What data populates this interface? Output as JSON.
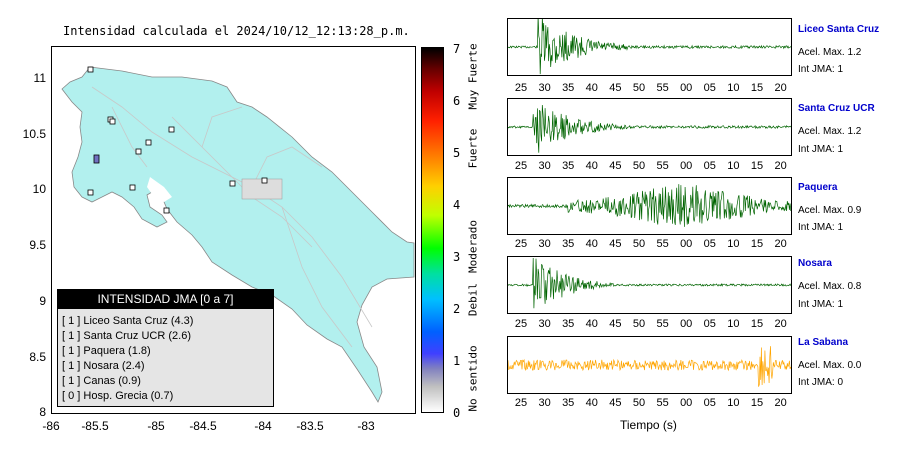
{
  "map": {
    "title": "Intensidad calculada el 2024/10/12_12:13:28_p.m.",
    "y_ticks": [
      "11",
      "10.5",
      "10",
      "9.5",
      "9",
      "8.5",
      "8"
    ],
    "x_ticks": [
      "-86",
      "-85.5",
      "-85",
      "-84.5",
      "-84",
      "-83.5",
      "-83"
    ],
    "land_color": "#b2f0ee",
    "sea_color": "#ffffff",
    "stations_color": "#ffffff",
    "highlight_station_color": "#7070c0"
  },
  "legend": {
    "title": "INTENSIDAD JMA [0 a 7]",
    "items": [
      "[ 1 ]  Liceo Santa Cruz (4.3)",
      "[ 1 ]  Santa Cruz UCR (2.6)",
      "[ 1 ]  Paquera (1.8)",
      "[ 1 ]  Nosara (2.4)",
      "[ 1 ]  Canas (0.9)",
      "[ 0 ]  Hosp. Grecia (0.7)"
    ]
  },
  "colorbar": {
    "ticks": [
      "7",
      "6",
      "5",
      "4",
      "3",
      "2",
      "1",
      "0"
    ],
    "categories": [
      "Muy Fuerte",
      "Fuerte",
      "Moderado",
      "Debil",
      "No sentido"
    ]
  },
  "panels": {
    "x_ticks": [
      "25",
      "30",
      "35",
      "40",
      "45",
      "50",
      "55",
      "00",
      "05",
      "10",
      "15",
      "20"
    ],
    "xlabel": "Tiempo (s)",
    "stations": [
      {
        "name": "Liceo Santa Cruz",
        "acel": "Acel. Max. 1.2",
        "int": "Int JMA: 1",
        "color": "#006400"
      },
      {
        "name": "Santa Cruz UCR",
        "acel": "Acel. Max. 1.2",
        "int": "Int JMA: 1",
        "color": "#006400"
      },
      {
        "name": "Paquera",
        "acel": "Acel. Max. 0.9",
        "int": "Int JMA: 1",
        "color": "#006400"
      },
      {
        "name": "Nosara",
        "acel": "Acel. Max. 0.8",
        "int": "Int JMA: 1",
        "color": "#006400"
      },
      {
        "name": "La Sabana",
        "acel": "Acel. Max. 0.0",
        "int": "Int JMA: 0",
        "color": "#ffa500"
      }
    ]
  }
}
